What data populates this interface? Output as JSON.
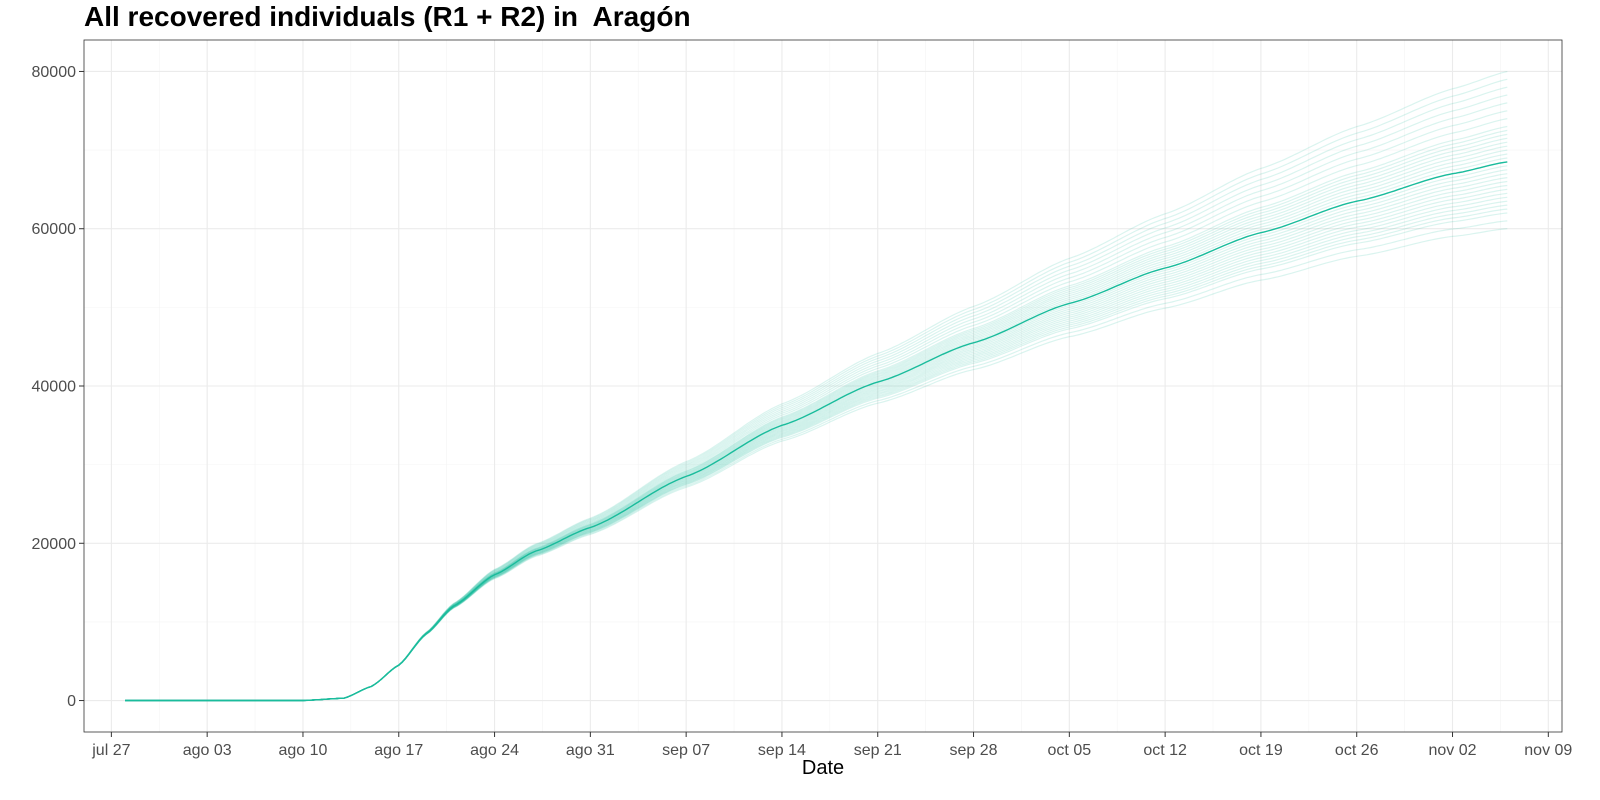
{
  "chart_data": {
    "type": "line",
    "title": "All recovered individuals (R1 + R2) in  Aragón",
    "xlabel": "Date",
    "ylabel": "",
    "x_start": "jul 28",
    "x_end": "nov 06",
    "xlim": [
      "jul 25",
      "nov 10"
    ],
    "ylim": [
      -4000,
      84000
    ],
    "x_ticks": [
      "jul 27",
      "ago 03",
      "ago 10",
      "ago 17",
      "ago 24",
      "ago 31",
      "sep 07",
      "sep 14",
      "sep 21",
      "sep 28",
      "oct 05",
      "oct 12",
      "oct 19",
      "oct 26",
      "nov 02",
      "nov 09"
    ],
    "y_ticks": [
      0,
      20000,
      40000,
      60000,
      80000
    ],
    "grid": true,
    "legend": "none",
    "line_color": "#1abc9c",
    "median_series": {
      "x": [
        "ago 10",
        "ago 13",
        "ago 15",
        "ago 17",
        "ago 19",
        "ago 21",
        "ago 24",
        "ago 27",
        "ago 31",
        "sep 07",
        "sep 14",
        "sep 21",
        "sep 28",
        "oct 05",
        "oct 12",
        "oct 19",
        "oct 26",
        "nov 02",
        "nov 06"
      ],
      "y": [
        0,
        300,
        1800,
        4500,
        8500,
        12000,
        16000,
        19000,
        22000,
        28500,
        35000,
        40500,
        45500,
        50500,
        55000,
        59500,
        63500,
        67000,
        68500
      ]
    },
    "ensemble_end_values": [
      60000,
      61000,
      62000,
      62500,
      63000,
      63500,
      64000,
      64500,
      65000,
      65500,
      66000,
      66500,
      67000,
      67500,
      68000,
      68500,
      69000,
      69500,
      70000,
      70500,
      71000,
      71500,
      72000,
      72500,
      73000,
      74000,
      75000,
      76000,
      77000,
      78000,
      79000,
      80000
    ]
  }
}
